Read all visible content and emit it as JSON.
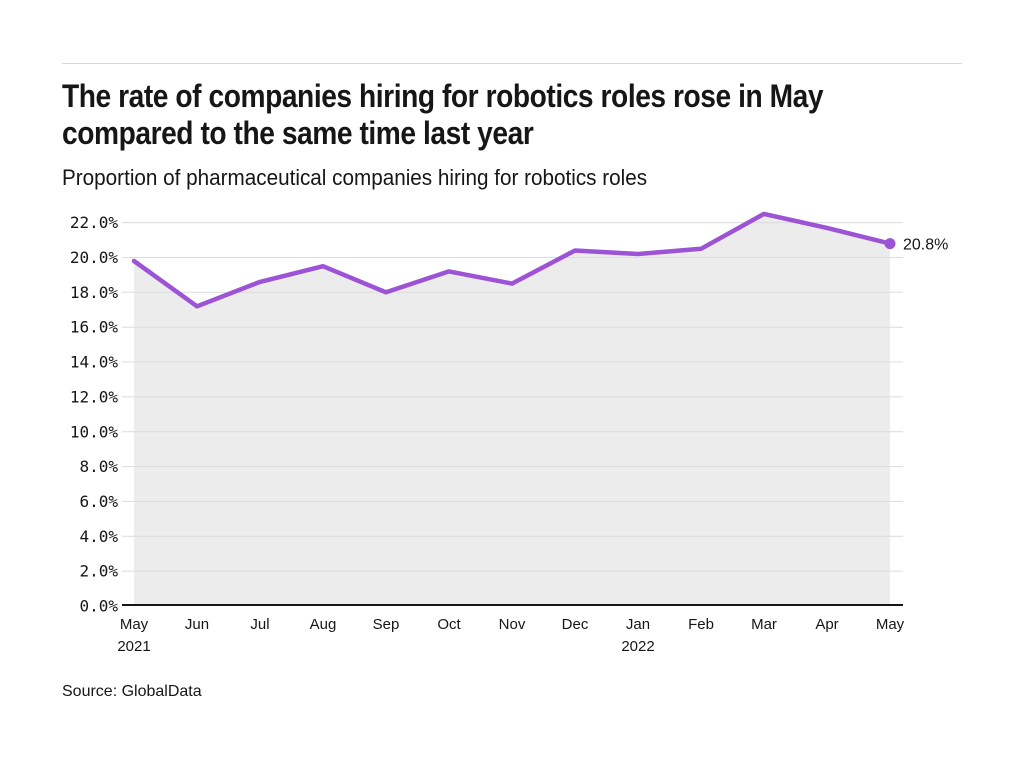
{
  "header": {
    "title_lines": [
      "The rate of companies hiring for robotics roles rose in May",
      "compared to the same time last year"
    ],
    "subtitle": "Proportion of pharmaceutical companies hiring for robotics roles"
  },
  "footer": {
    "source": "Source: GlobalData"
  },
  "chart_data": {
    "type": "line",
    "title": "The rate of companies hiring for robotics roles rose in May compared to the same time last year",
    "subtitle": "Proportion of pharmaceutical companies hiring for robotics roles",
    "categories": [
      "May 2021",
      "Jun",
      "Jul",
      "Aug",
      "Sep",
      "Oct",
      "Nov",
      "Dec",
      "Jan 2022",
      "Feb",
      "Mar",
      "Apr",
      "May"
    ],
    "x_tick_labels": [
      "May",
      "Jun",
      "Jul",
      "Aug",
      "Sep",
      "Oct",
      "Nov",
      "Dec",
      "Jan",
      "Feb",
      "Mar",
      "Apr",
      "May"
    ],
    "x_year_labels": [
      {
        "index": 0,
        "label": "2021"
      },
      {
        "index": 8,
        "label": "2022"
      }
    ],
    "series": [
      {
        "name": "Proportion of pharmaceutical companies hiring for robotics roles",
        "values": [
          19.8,
          17.2,
          18.6,
          19.5,
          18.0,
          19.2,
          18.5,
          20.4,
          20.2,
          20.5,
          22.5,
          21.7,
          20.8
        ]
      }
    ],
    "ylim": [
      0,
      22
    ],
    "ytick_step": 2,
    "ytick_suffix": "%",
    "ytick_decimals": 1,
    "grid": true,
    "area_fill": true,
    "legend": "none",
    "end_annotation": "20.8%",
    "colors": {
      "line": "#9c53d6",
      "area": "#ececec",
      "grid": "#dcdcdc",
      "axis": "#161616",
      "text": "#161616",
      "rule": "#d9d9d9"
    }
  }
}
